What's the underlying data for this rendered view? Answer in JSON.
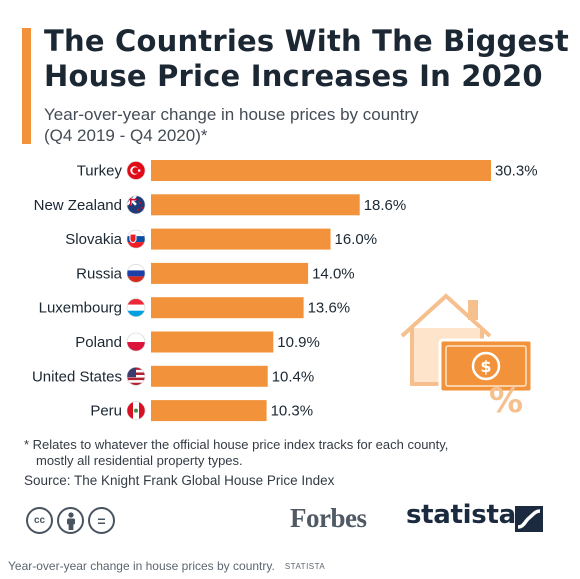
{
  "title": "The Countries With The Biggest House Price Increases In 2020",
  "subtitle_line1": "Year-over-year change in house prices by country",
  "subtitle_line2": "(Q4 2019 - Q4 2020)*",
  "chart_data": {
    "type": "bar",
    "orientation": "horizontal",
    "title": "The Countries With The Biggest House Price Increases In 2020",
    "subtitle": "Year-over-year change in house prices by country (Q4 2019 - Q4 2020)*",
    "categories": [
      "Turkey",
      "New Zealand",
      "Slovakia",
      "Russia",
      "Luxembourg",
      "Poland",
      "United States",
      "Peru"
    ],
    "values": [
      30.3,
      18.6,
      16.0,
      14.0,
      13.6,
      10.9,
      10.4,
      10.3
    ],
    "value_labels": [
      "30.3%",
      "18.6%",
      "16.0%",
      "14.0%",
      "13.6%",
      "10.9%",
      "10.4%",
      "10.3%"
    ],
    "unit": "%",
    "xlim": [
      0,
      30.3
    ],
    "grid": false,
    "legend": "none",
    "bar_color": "#f2923a"
  },
  "flags": [
    "turkey-flag-icon",
    "new-zealand-flag-icon",
    "slovakia-flag-icon",
    "russia-flag-icon",
    "luxembourg-flag-icon",
    "poland-flag-icon",
    "united-states-flag-icon",
    "peru-flag-icon"
  ],
  "illustration": "house-price-percent-icon",
  "footnote_line1": "* Relates to whatever the official house price index tracks for each county,",
  "footnote_line2": "mostly all residential property types.",
  "source": "Source: The Knight Frank Global House Price Index",
  "license_icons": [
    "creative-commons-icon",
    "attribution-icon",
    "no-derivatives-icon"
  ],
  "license_glyphs": [
    "cc",
    "",
    "="
  ],
  "logos": {
    "forbes": "Forbes",
    "statista": "statista"
  },
  "caption": {
    "text": "Year-over-year change in house prices by country.",
    "credit": "STATISTA"
  },
  "colors": {
    "accent": "#f2923a",
    "title": "#1b2733",
    "text": "#444c55"
  }
}
